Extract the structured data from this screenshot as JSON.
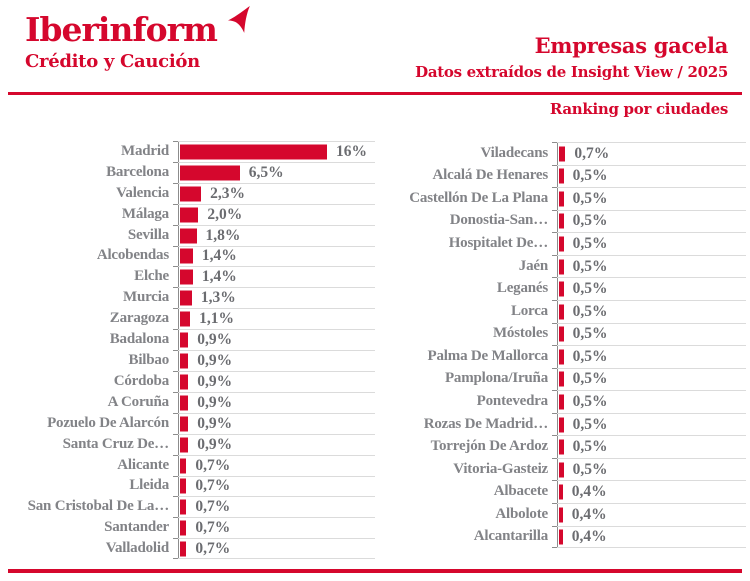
{
  "brand": {
    "name": "Iberinform",
    "tagline": "Crédito y Caución"
  },
  "header": {
    "title": "Empresas gacela",
    "subtitle": "Datos extraídos de Insight View / 2025",
    "section_label": "Ranking por ciudades"
  },
  "colors": {
    "bar": "#d5072d",
    "brand_red": "#d5072d",
    "category_label": "#828387",
    "value_label": "#6b6c70",
    "gridline": "#dbdbdb",
    "axis": "#8c8c8c"
  },
  "chart_data": [
    {
      "panel": "left",
      "type": "bar",
      "orientation": "horizontal",
      "title": "Ranking por ciudades",
      "unit": "%",
      "value_axis_max": 16,
      "grid": true,
      "legend": false,
      "categories": [
        "Madrid",
        "Barcelona",
        "Valencia",
        "Málaga",
        "Sevilla",
        "Alcobendas",
        "Elche",
        "Murcia",
        "Zaragoza",
        "Badalona",
        "Bilbao",
        "Córdoba",
        "A Coruña",
        "Pozuelo De Alarcón",
        "Santa Cruz De…",
        "Alicante",
        "Lleida",
        "San Cristobal De La…",
        "Santander",
        "Valladolid"
      ],
      "values": [
        16,
        6.5,
        2.3,
        2.0,
        1.8,
        1.4,
        1.4,
        1.3,
        1.1,
        0.9,
        0.9,
        0.9,
        0.9,
        0.9,
        0.9,
        0.7,
        0.7,
        0.7,
        0.7,
        0.7
      ],
      "display_values": [
        "16%",
        "6,5%",
        "2,3%",
        "2,0%",
        "1,8%",
        "1,4%",
        "1,4%",
        "1,3%",
        "1,1%",
        "0,9%",
        "0,9%",
        "0,9%",
        "0,9%",
        "0,9%",
        "0,9%",
        "0,7%",
        "0,7%",
        "0,7%",
        "0,7%",
        "0,7%"
      ]
    },
    {
      "panel": "right",
      "type": "bar",
      "orientation": "horizontal",
      "title": "Ranking por ciudades",
      "unit": "%",
      "value_axis_max": 16,
      "grid": true,
      "legend": false,
      "categories": [
        "Viladecans",
        "Alcalá De Henares",
        "Castellón De La Plana",
        "Donostia-San…",
        "Hospitalet De…",
        "Jaén",
        "Leganés",
        "Lorca",
        "Móstoles",
        "Palma De Mallorca",
        "Pamplona/Iruña",
        "Pontevedra",
        "Rozas De Madrid…",
        "Torrejón De Ardoz",
        "Vitoria-Gasteiz",
        "Albacete",
        "Albolote",
        "Alcantarilla"
      ],
      "values": [
        0.7,
        0.5,
        0.5,
        0.5,
        0.5,
        0.5,
        0.5,
        0.5,
        0.5,
        0.5,
        0.5,
        0.5,
        0.5,
        0.5,
        0.5,
        0.4,
        0.4,
        0.4
      ],
      "display_values": [
        "0,7%",
        "0,5%",
        "0,5%",
        "0,5%",
        "0,5%",
        "0,5%",
        "0,5%",
        "0,5%",
        "0,5%",
        "0,5%",
        "0,5%",
        "0,5%",
        "0,5%",
        "0,5%",
        "0,5%",
        "0,4%",
        "0,4%",
        "0,4%"
      ]
    }
  ]
}
